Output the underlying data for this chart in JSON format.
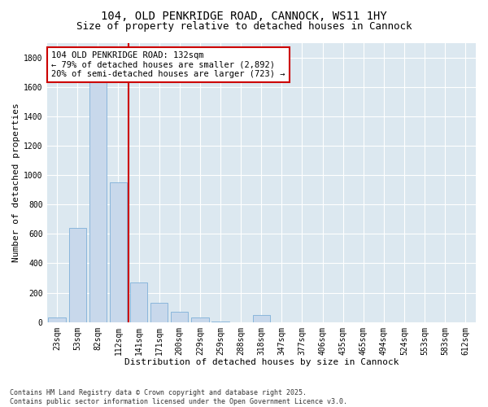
{
  "title_line1": "104, OLD PENKRIDGE ROAD, CANNOCK, WS11 1HY",
  "title_line2": "Size of property relative to detached houses in Cannock",
  "xlabel": "Distribution of detached houses by size in Cannock",
  "ylabel": "Number of detached properties",
  "categories": [
    "23sqm",
    "53sqm",
    "82sqm",
    "112sqm",
    "141sqm",
    "171sqm",
    "200sqm",
    "229sqm",
    "259sqm",
    "288sqm",
    "318sqm",
    "347sqm",
    "377sqm",
    "406sqm",
    "435sqm",
    "465sqm",
    "494sqm",
    "524sqm",
    "553sqm",
    "583sqm",
    "612sqm"
  ],
  "values": [
    30,
    640,
    1720,
    950,
    270,
    130,
    70,
    30,
    5,
    0,
    50,
    0,
    0,
    0,
    0,
    0,
    0,
    0,
    0,
    0,
    0
  ],
  "bar_color": "#c8d8eb",
  "bar_edge_color": "#7fb0d8",
  "vline_color": "#cc0000",
  "vline_x": 3.5,
  "annotation_text": "104 OLD PENKRIDGE ROAD: 132sqm\n← 79% of detached houses are smaller (2,892)\n20% of semi-detached houses are larger (723) →",
  "annotation_box_facecolor": "#ffffff",
  "annotation_box_edgecolor": "#cc0000",
  "ylim": [
    0,
    1900
  ],
  "yticks": [
    0,
    200,
    400,
    600,
    800,
    1000,
    1200,
    1400,
    1600,
    1800
  ],
  "bg_color": "#ffffff",
  "plot_bg_color": "#dce8f0",
  "grid_color": "#ffffff",
  "footer_text": "Contains HM Land Registry data © Crown copyright and database right 2025.\nContains public sector information licensed under the Open Government Licence v3.0.",
  "title_fontsize": 10,
  "subtitle_fontsize": 9,
  "axis_label_fontsize": 8,
  "tick_fontsize": 7,
  "annotation_fontsize": 7.5,
  "footer_fontsize": 6
}
